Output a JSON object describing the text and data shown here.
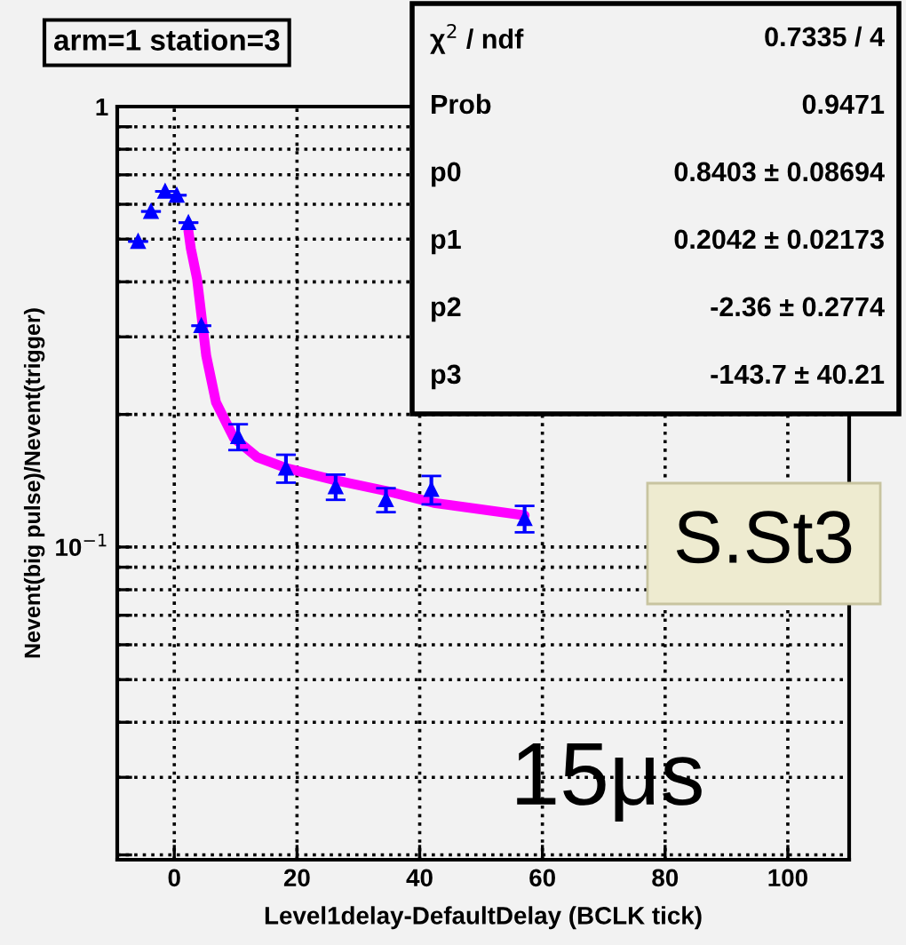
{
  "chart_data": {
    "type": "scatter",
    "title": "arm=1 station=3",
    "xlabel": "Level1delay-DefaultDelay (BCLK tick)",
    "ylabel": "Nevent(big pulse)/Nevent(trigger)",
    "series": [
      {
        "color": "#0000ff",
        "marker": "triangle",
        "x": [
          -5.9,
          -3.8,
          -1.5,
          0.4,
          2.3,
          4.4,
          10.4,
          18.2,
          26.3,
          34.5,
          41.9,
          57.1
        ],
        "values": [
          0.494,
          0.578,
          0.642,
          0.629,
          0.545,
          0.318,
          0.178,
          0.151,
          0.137,
          0.128,
          0.135,
          0.116
        ],
        "errors": [
          null,
          null,
          null,
          null,
          null,
          null,
          0.012,
          0.011,
          0.009,
          0.008,
          0.01,
          0.008
        ]
      },
      {
        "type": "line",
        "color": "#ff00ff",
        "x": [
          2.3,
          2.7,
          3.7,
          5.2,
          6.8,
          9.7,
          13.5,
          18.3,
          26,
          34.6,
          42.3,
          57.1
        ],
        "values": [
          0.522,
          0.476,
          0.407,
          0.272,
          0.213,
          0.177,
          0.16,
          0.151,
          0.142,
          0.134,
          0.126,
          0.118
        ]
      }
    ],
    "log": "y",
    "xlim": [
      -9.3,
      110
    ],
    "xticks": [
      0,
      20,
      40,
      60,
      80,
      100
    ],
    "ylim": [
      0.0195,
      1
    ],
    "yticks": [
      {
        "value": 0.02,
        "label": null
      },
      {
        "value": 0.03,
        "label": null
      },
      {
        "value": 0.04,
        "label": null
      },
      {
        "value": 0.05,
        "label": null
      },
      {
        "value": 0.06,
        "label": null
      },
      {
        "value": 0.07,
        "label": null
      },
      {
        "value": 0.08,
        "label": null
      },
      {
        "value": 0.09,
        "label": null
      },
      {
        "value": 0.1,
        "label": "10$^{−1}$"
      },
      {
        "value": 0.2,
        "label": null
      },
      {
        "value": 0.3,
        "label": null
      },
      {
        "value": 0.4,
        "label": null
      },
      {
        "value": 0.5,
        "label": null
      },
      {
        "value": 0.6,
        "label": null
      },
      {
        "value": 0.7,
        "label": null
      },
      {
        "value": 0.8,
        "label": null
      },
      {
        "value": 0.9,
        "label": null
      },
      {
        "value": 1,
        "label": "1"
      }
    ],
    "grid": true,
    "legend": false,
    "annotations": [
      "χ$^{2}$ / ndf",
      "0.7335 / 4",
      "Prob",
      "0.9471",
      "p0",
      "0.8403 ± 0.08694",
      "p1",
      "0.2042 ± 0.02173",
      "p2",
      "-2.36 ± 0.2774",
      "p3",
      "-143.7 ± 40.21",
      "S.St3",
      "15μs"
    ]
  }
}
